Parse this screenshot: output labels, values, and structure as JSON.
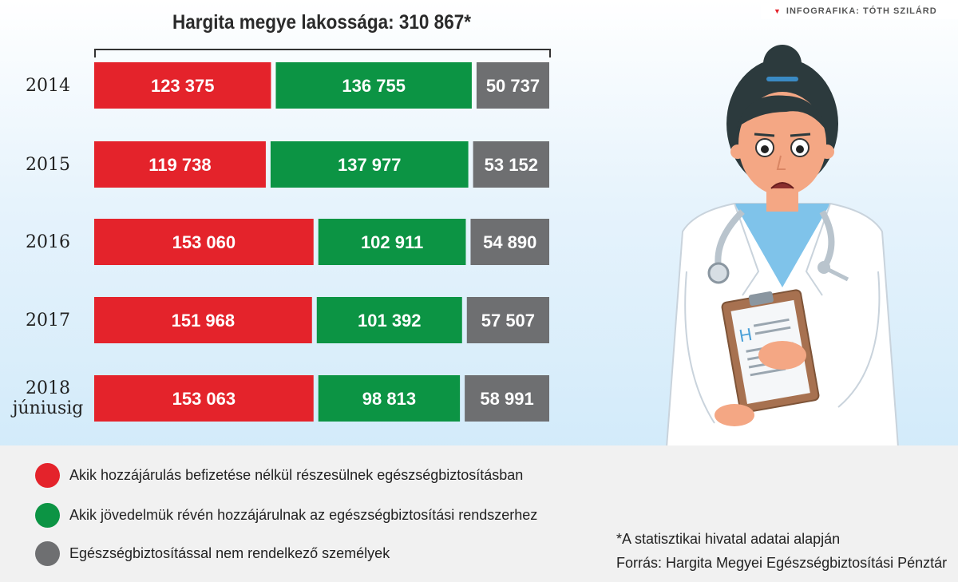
{
  "credit": "INFOGRAFIKA: TÓTH SZILÁRD",
  "chart_data": {
    "type": "bar",
    "stacked": true,
    "orientation": "horizontal",
    "title": "Hargita megye lakossága: 310 867*",
    "categories": [
      "2014",
      "2015",
      "2016",
      "2017",
      "2018 júniusig"
    ],
    "category_lines": [
      [
        "2014"
      ],
      [
        "2015"
      ],
      [
        "2016"
      ],
      [
        "2017"
      ],
      [
        "2018",
        "júniusig"
      ]
    ],
    "series": [
      {
        "name": "Akik hozzájárulás befizetése nélkül részesülnek egészségbiztosításban",
        "color": "#e4232b",
        "values": [
          123375,
          119738,
          153060,
          151968,
          153063
        ],
        "labels": [
          "123 375",
          "119 738",
          "153 060",
          "151 968",
          "153 063"
        ]
      },
      {
        "name": "Akik jövedelmük révén hozzájárulnak az egészségbiztosítási rendszerhez",
        "color": "#0c9444",
        "values": [
          136755,
          137977,
          102911,
          101392,
          98813
        ],
        "labels": [
          "136 755",
          "137 977",
          "102 911",
          "101 392",
          "98 813"
        ]
      },
      {
        "name": "Egészségbiztosítással nem rendelkező személyek",
        "color": "#6e6f71",
        "values": [
          50737,
          53152,
          54890,
          57507,
          58991
        ],
        "labels": [
          "50 737",
          "53 152",
          "54 890",
          "57 507",
          "58 991"
        ]
      }
    ],
    "legend_position": "bottom",
    "grid": false
  },
  "notes": {
    "footnote": "*A statisztikai hivatal adatai alapján",
    "source": "Forrás: Hargita Megyei Egészségbiztosítási Pénztár"
  }
}
